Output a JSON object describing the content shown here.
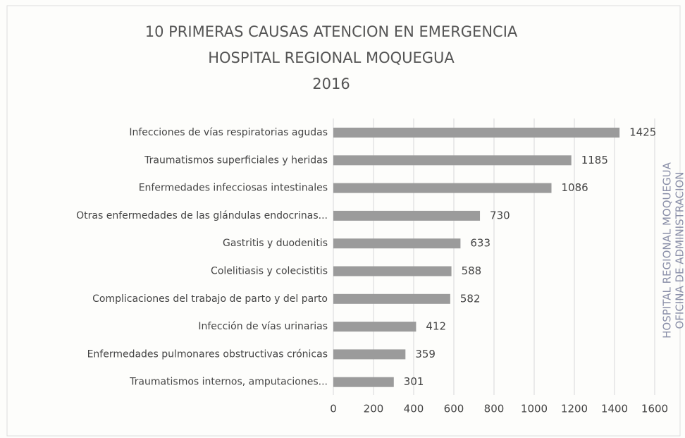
{
  "chart_data": {
    "type": "bar",
    "orientation": "horizontal",
    "title": [
      "10 PRIMERAS CAUSAS ATENCION EN EMERGENCIA",
      "HOSPITAL REGIONAL MOQUEGUA",
      "2016"
    ],
    "categories": [
      "Infecciones de vías respiratorias agudas",
      "Traumatismos superficiales y heridas",
      "Enfermedades infecciosas intestinales",
      "Otras enfermedades de las glándulas endocrinas...",
      "Gastritis y duodenitis",
      "Colelitiasis y colecistitis",
      "Complicaciones del trabajo de parto y del parto",
      "Infección de vías urinarias",
      "Enfermedades pulmonares obstructivas crónicas",
      "Traumatismos internos, amputaciones..."
    ],
    "values": [
      1425,
      1185,
      1086,
      730,
      633,
      588,
      582,
      412,
      359,
      301
    ],
    "color": "#9b9b9b",
    "xlim": [
      0,
      1600
    ],
    "xticks": [
      0,
      200,
      400,
      600,
      800,
      1000,
      1200,
      1400,
      1600
    ],
    "grid": true
  },
  "stamp": [
    "HOSPITAL REGIONAL MOQUEGUA",
    "OFICINA DE ADMINISTRACION"
  ]
}
